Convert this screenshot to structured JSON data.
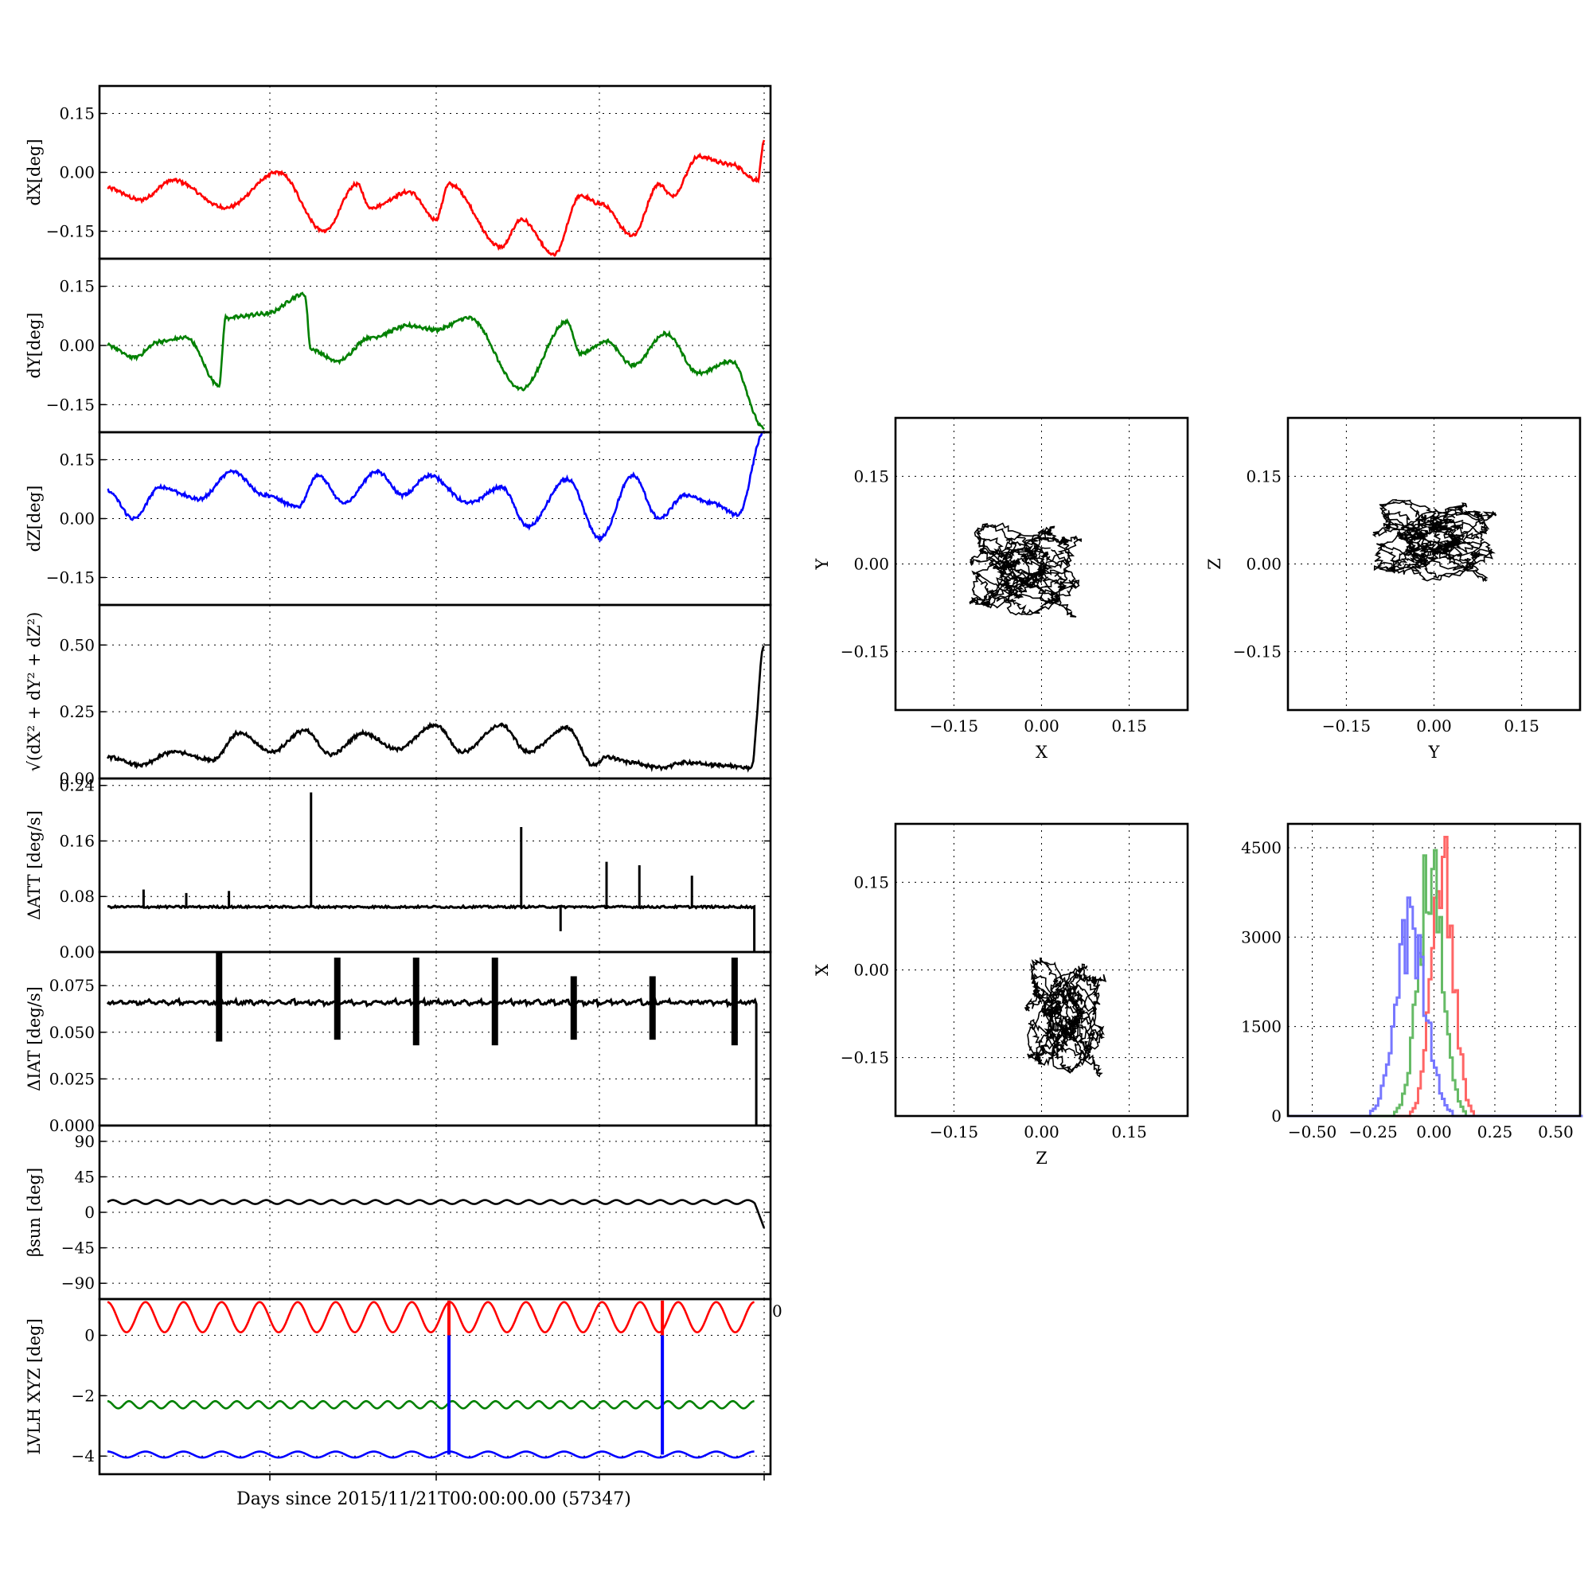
{
  "figure": {
    "xlabel": "Days since 2015/11/21T00:00:00.00 (57347)",
    "lvlh_zero_label": "0"
  },
  "chart_data": [
    {
      "id": "dx",
      "type": "line",
      "ylabel": "dX[deg]",
      "ylim": [
        -0.22,
        0.22
      ],
      "yticks": [
        -0.15,
        0.0,
        0.15
      ],
      "yticklabels": [
        "−0.15",
        "0.00",
        "0.15"
      ],
      "color": "#ff0000",
      "series": [
        {
          "x": [
            0,
            0.05,
            0.1,
            0.18,
            0.26,
            0.33,
            0.38,
            0.4,
            0.46,
            0.5,
            0.52,
            0.6,
            0.63,
            0.68,
            0.72,
            0.75,
            0.8,
            0.84,
            0.86,
            0.9,
            0.95,
            0.99,
            1.0
          ],
          "y": [
            -0.04,
            -0.07,
            -0.02,
            -0.09,
            0.0,
            -0.15,
            -0.03,
            -0.09,
            -0.05,
            -0.12,
            -0.03,
            -0.19,
            -0.12,
            -0.21,
            -0.06,
            -0.08,
            -0.16,
            -0.03,
            -0.06,
            0.04,
            0.02,
            -0.02,
            0.08
          ]
        }
      ]
    },
    {
      "id": "dy",
      "type": "line",
      "ylabel": "dY[deg]",
      "ylim": [
        -0.22,
        0.22
      ],
      "yticks": [
        -0.15,
        0.0,
        0.15
      ],
      "yticklabels": [
        "−0.15",
        "0.00",
        "0.15"
      ],
      "color": "#008000",
      "series": [
        {
          "x": [
            0,
            0.04,
            0.08,
            0.12,
            0.17,
            0.18,
            0.24,
            0.3,
            0.31,
            0.35,
            0.4,
            0.46,
            0.5,
            0.55,
            0.63,
            0.7,
            0.72,
            0.76,
            0.8,
            0.85,
            0.9,
            0.95,
            1.0
          ],
          "y": [
            0.0,
            -0.03,
            0.01,
            0.02,
            -0.1,
            0.07,
            0.08,
            0.13,
            -0.01,
            -0.04,
            0.02,
            0.05,
            0.04,
            0.07,
            -0.11,
            0.06,
            -0.02,
            0.01,
            -0.05,
            0.03,
            -0.07,
            -0.04,
            -0.21
          ]
        }
      ]
    },
    {
      "id": "dz",
      "type": "line",
      "ylabel": "dZ[deg]",
      "ylim": [
        -0.22,
        0.22
      ],
      "yticks": [
        -0.15,
        0.0,
        0.15
      ],
      "yticklabels": [
        "−0.15",
        "0.00",
        "0.15"
      ],
      "color": "#0000ff",
      "series": [
        {
          "x": [
            0,
            0.04,
            0.08,
            0.14,
            0.19,
            0.24,
            0.29,
            0.32,
            0.36,
            0.41,
            0.45,
            0.49,
            0.55,
            0.6,
            0.64,
            0.7,
            0.75,
            0.8,
            0.84,
            0.88,
            0.92,
            0.96,
            1.0
          ],
          "y": [
            0.07,
            0.0,
            0.08,
            0.05,
            0.12,
            0.06,
            0.03,
            0.11,
            0.04,
            0.12,
            0.06,
            0.11,
            0.04,
            0.08,
            -0.02,
            0.1,
            -0.05,
            0.11,
            0.0,
            0.06,
            0.04,
            0.01,
            0.22
          ]
        }
      ]
    },
    {
      "id": "dr",
      "type": "line",
      "ylabel": "√(dX² + dY² + dZ²)",
      "ylim": [
        0.0,
        0.65
      ],
      "yticks": [
        0.0,
        0.25,
        0.5
      ],
      "yticklabels": [
        "0.00",
        "0.25",
        "0.50"
      ],
      "color": "#000000",
      "series": [
        {
          "x": [
            0,
            0.05,
            0.1,
            0.16,
            0.2,
            0.25,
            0.3,
            0.34,
            0.39,
            0.44,
            0.5,
            0.54,
            0.6,
            0.64,
            0.7,
            0.74,
            0.76,
            0.8,
            0.84,
            0.88,
            0.93,
            0.98,
            1.0
          ],
          "y": [
            0.08,
            0.05,
            0.1,
            0.07,
            0.17,
            0.1,
            0.18,
            0.09,
            0.17,
            0.11,
            0.2,
            0.1,
            0.2,
            0.1,
            0.19,
            0.05,
            0.08,
            0.06,
            0.04,
            0.06,
            0.05,
            0.04,
            0.5
          ]
        }
      ]
    },
    {
      "id": "datt",
      "type": "line",
      "ylabel": "ΔATT [deg/s]",
      "ylim": [
        0.0,
        0.25
      ],
      "yticks": [
        0.0,
        0.08,
        0.16,
        0.24
      ],
      "yticklabels": [
        "0.00",
        "0.08",
        "0.16",
        "0.24"
      ],
      "color": "#000000",
      "baseline": 0.065,
      "spikes": [
        {
          "x": 0.055,
          "y": 0.09
        },
        {
          "x": 0.12,
          "y": 0.085
        },
        {
          "x": 0.185,
          "y": 0.088
        },
        {
          "x": 0.31,
          "y": 0.23
        },
        {
          "x": 0.63,
          "y": 0.18
        },
        {
          "x": 0.69,
          "y": 0.03
        },
        {
          "x": 0.76,
          "y": 0.13
        },
        {
          "x": 0.81,
          "y": 0.125
        },
        {
          "x": 0.89,
          "y": 0.11
        }
      ],
      "end_drop": 0.0
    },
    {
      "id": "diat",
      "type": "line",
      "ylabel": "ΔIAT [deg/s]",
      "ylim": [
        0.0,
        0.093
      ],
      "yticks": [
        0.0,
        0.025,
        0.05,
        0.075
      ],
      "yticklabels": [
        "0.000",
        "0.025",
        "0.050",
        "0.075"
      ],
      "color": "#000000",
      "baseline": 0.065,
      "bursts": [
        {
          "x": 0.17,
          "hi": 0.093,
          "lo": 0.045
        },
        {
          "x": 0.35,
          "hi": 0.09,
          "lo": 0.046
        },
        {
          "x": 0.47,
          "hi": 0.09,
          "lo": 0.043
        },
        {
          "x": 0.59,
          "hi": 0.09,
          "lo": 0.043
        },
        {
          "x": 0.71,
          "hi": 0.08,
          "lo": 0.046
        },
        {
          "x": 0.83,
          "hi": 0.08,
          "lo": 0.046
        },
        {
          "x": 0.955,
          "hi": 0.09,
          "lo": 0.043
        }
      ],
      "end_drop": 0.0
    },
    {
      "id": "beta",
      "type": "line",
      "ylabel": "βsun [deg]",
      "ylim": [
        -110,
        110
      ],
      "yticks": [
        -90,
        -45,
        0,
        45,
        90
      ],
      "yticklabels": [
        "−90",
        "−45",
        "0",
        "45",
        "90"
      ],
      "color": "#000000",
      "mean": 13,
      "amplitude": 2.5,
      "periods": 30,
      "end_value": -20
    },
    {
      "id": "lvlh",
      "type": "line",
      "ylabel": "LVLH XYZ [deg]",
      "ylim": [
        -4.6,
        1.2
      ],
      "yticks": [
        -4,
        -2,
        0
      ],
      "yticklabels": [
        "−4",
        "−2",
        "0"
      ],
      "series": [
        {
          "color": "#ff0000",
          "mean": 0.6,
          "amplitude": 0.5,
          "periods": 17
        },
        {
          "color": "#008000",
          "mean": -2.3,
          "amplitude": 0.12,
          "periods": 30
        },
        {
          "color": "#0000ff",
          "mean": -3.95,
          "amplitude": 0.1,
          "periods": 17
        }
      ],
      "jumps": [
        {
          "x": 0.52,
          "from": -3.95,
          "to": 0.0
        },
        {
          "x": 0.845,
          "from": -3.95,
          "to": 0.0
        }
      ]
    },
    {
      "id": "xy",
      "type": "scatter",
      "xlabel": "X",
      "ylabel": "Y",
      "xlim": [
        -0.25,
        0.25
      ],
      "ylim": [
        -0.25,
        0.25
      ],
      "ticks": [
        -0.15,
        0.0,
        0.15
      ],
      "ticklabels": [
        "−0.15",
        "0.00",
        "0.15"
      ],
      "center": [
        -0.03,
        -0.01
      ],
      "spread": [
        0.1,
        0.08
      ],
      "color": "#000000"
    },
    {
      "id": "yz",
      "type": "scatter",
      "xlabel": "Y",
      "ylabel": "Z",
      "xlim": [
        -0.25,
        0.25
      ],
      "ylim": [
        -0.25,
        0.25
      ],
      "ticks": [
        -0.15,
        0.0,
        0.15
      ],
      "ticklabels": [
        "−0.15",
        "0.00",
        "0.15"
      ],
      "center": [
        0.0,
        0.04
      ],
      "spread": [
        0.11,
        0.07
      ],
      "color": "#000000"
    },
    {
      "id": "zx",
      "type": "scatter",
      "xlabel": "Z",
      "ylabel": "X",
      "xlim": [
        -0.25,
        0.25
      ],
      "ylim": [
        -0.25,
        0.25
      ],
      "ticks": [
        -0.15,
        0.0,
        0.15
      ],
      "ticklabels": [
        "−0.15",
        "0.00",
        "0.15"
      ],
      "center": [
        0.04,
        -0.08
      ],
      "spread": [
        0.07,
        0.1
      ],
      "color": "#000000"
    },
    {
      "id": "hist",
      "type": "bar",
      "xlim": [
        -0.6,
        0.6
      ],
      "ylim": [
        0,
        4900
      ],
      "xticks": [
        -0.5,
        -0.25,
        0.0,
        0.25,
        0.5
      ],
      "xticklabels": [
        "−0.50",
        "−0.25",
        "0.00",
        "0.25",
        "0.50"
      ],
      "yticks": [
        0,
        1500,
        3000,
        4500
      ],
      "yticklabels": [
        "0",
        "1500",
        "3000",
        "4500"
      ],
      "series": [
        {
          "color": "#ff6666",
          "center": 0.03,
          "sigma": 0.045,
          "peak": 4900
        },
        {
          "color": "#66bb66",
          "center": -0.02,
          "sigma": 0.05,
          "peak": 4900
        },
        {
          "color": "#7777ff",
          "center": -0.1,
          "sigma": 0.06,
          "peak": 3800
        }
      ]
    }
  ]
}
